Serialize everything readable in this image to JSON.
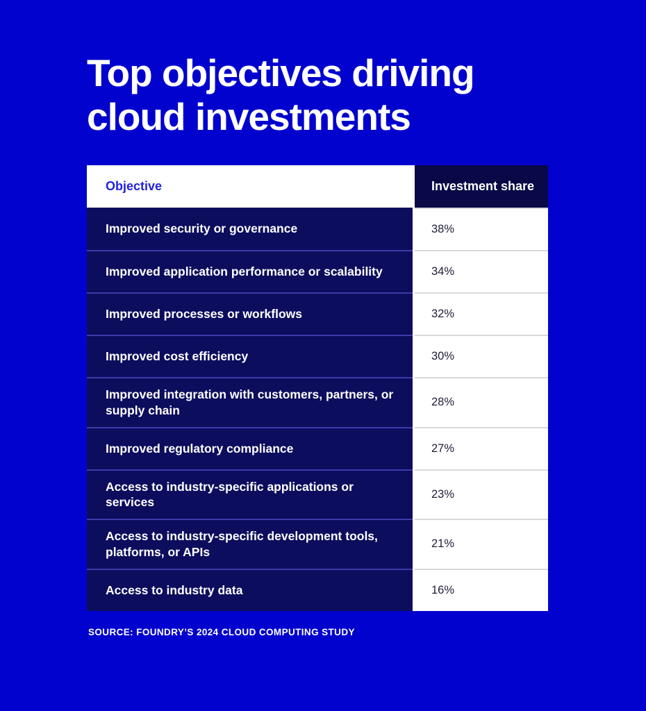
{
  "title": {
    "line1": "Top objectives driving",
    "line2": "cloud investments"
  },
  "table": {
    "header": {
      "objective": "Objective",
      "share": "Investment share"
    },
    "rows": [
      {
        "objective": "Improved security or governance",
        "share": "38%"
      },
      {
        "objective": "Improved application performance or scalability",
        "share": "34%"
      },
      {
        "objective": "Improved processes or workflows",
        "share": "32%"
      },
      {
        "objective": "Improved cost efficiency",
        "share": "30%"
      },
      {
        "objective": "Improved integration with customers, partners, or supply chain",
        "share": "28%"
      },
      {
        "objective": "Improved regulatory compliance",
        "share": "27%"
      },
      {
        "objective": "Access to industry-specific applications or services",
        "share": "23%"
      },
      {
        "objective": "Access to industry-specific development tools, platforms, or APIs",
        "share": "21%"
      },
      {
        "objective": "Access to industry data",
        "share": "16%"
      }
    ]
  },
  "source": "SOURCE: FOUNDRY’S 2024 CLOUD COMPUTING STUDY",
  "colors": {
    "background": "#0202ce",
    "row_navy": "#0d0d5e",
    "header_navy": "#090947",
    "accent_blue": "#2222dd",
    "separator_navy": "#3b3bab",
    "separator_gray": "#d8d8d8",
    "white": "#ffffff",
    "value_text": "#20203a"
  },
  "chart_data": {
    "type": "table",
    "title": "Top objectives driving cloud investments",
    "columns": [
      "Objective",
      "Investment share"
    ],
    "categories": [
      "Improved security or governance",
      "Improved application performance or scalability",
      "Improved processes or workflows",
      "Improved cost efficiency",
      "Improved integration with customers, partners, or supply chain",
      "Improved regulatory compliance",
      "Access to industry-specific applications or services",
      "Access to industry-specific development tools, platforms, or APIs",
      "Access to industry data"
    ],
    "values": [
      38,
      34,
      32,
      30,
      28,
      27,
      23,
      21,
      16
    ],
    "value_unit": "percent",
    "source": "SOURCE: FOUNDRY’S 2024 CLOUD COMPUTING STUDY"
  }
}
